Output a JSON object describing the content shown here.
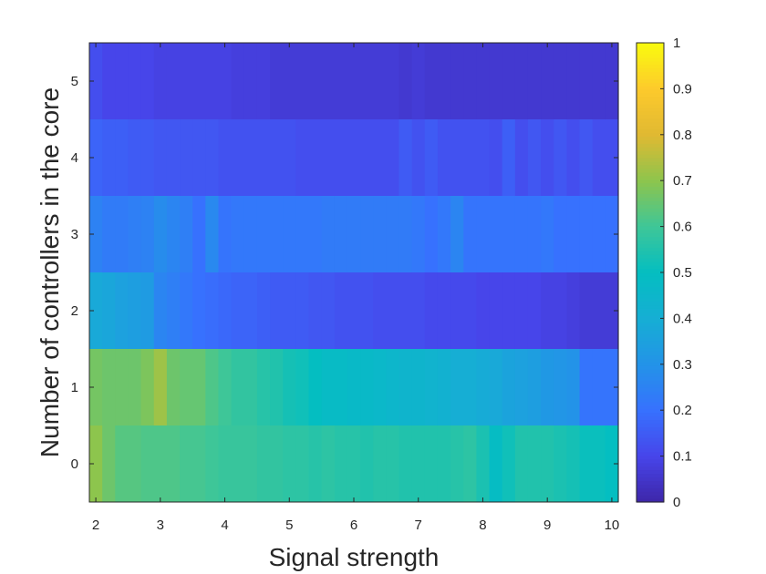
{
  "chart_data": {
    "type": "heatmap",
    "title": "",
    "xlabel": "Signal strength",
    "ylabel": "Number of controllers in the core",
    "x_range": [
      1.9,
      10.1
    ],
    "x_ticks": [
      2,
      3,
      4,
      5,
      6,
      7,
      8,
      9,
      10
    ],
    "y_ticks": [
      0,
      1,
      2,
      3,
      4,
      5
    ],
    "y_range": [
      -0.5,
      5.5
    ],
    "colormap": "parula",
    "colorbar": {
      "range": [
        0,
        1
      ],
      "ticks": [
        0,
        0.1,
        0.2,
        0.3,
        0.4,
        0.5,
        0.6,
        0.7,
        0.8,
        0.9,
        1
      ],
      "tick_labels": [
        "0",
        "0.1",
        "0.2",
        "0.3",
        "0.4",
        "0.5",
        "0.6",
        "0.7",
        "0.8",
        "0.9",
        "1"
      ]
    },
    "columns_x": [
      2.0,
      2.2,
      2.4,
      2.6,
      2.8,
      3.0,
      3.2,
      3.4,
      3.6,
      3.8,
      4.0,
      4.2,
      4.4,
      4.6,
      4.8,
      5.0,
      5.2,
      5.4,
      5.6,
      5.8,
      6.0,
      6.2,
      6.4,
      6.6,
      6.8,
      7.0,
      7.2,
      7.4,
      7.6,
      7.8,
      8.0,
      8.2,
      8.4,
      8.6,
      8.8,
      9.0,
      9.2,
      9.4,
      9.6,
      9.8,
      10.0
    ],
    "rows": [
      {
        "y": 0,
        "values": [
          0.7,
          0.66,
          0.63,
          0.63,
          0.62,
          0.62,
          0.62,
          0.61,
          0.61,
          0.6,
          0.59,
          0.59,
          0.59,
          0.58,
          0.58,
          0.57,
          0.57,
          0.56,
          0.57,
          0.56,
          0.56,
          0.55,
          0.56,
          0.56,
          0.55,
          0.55,
          0.55,
          0.55,
          0.56,
          0.57,
          0.54,
          0.49,
          0.52,
          0.55,
          0.55,
          0.55,
          0.54,
          0.53,
          0.51,
          0.51,
          0.5
        ]
      },
      {
        "y": 1,
        "values": [
          0.67,
          0.66,
          0.66,
          0.66,
          0.68,
          0.72,
          0.66,
          0.65,
          0.65,
          0.62,
          0.6,
          0.58,
          0.58,
          0.56,
          0.55,
          0.53,
          0.52,
          0.5,
          0.48,
          0.48,
          0.47,
          0.47,
          0.46,
          0.45,
          0.44,
          0.44,
          0.43,
          0.42,
          0.4,
          0.4,
          0.39,
          0.38,
          0.36,
          0.35,
          0.34,
          0.32,
          0.31,
          0.3,
          0.21,
          0.21,
          0.21
        ]
      },
      {
        "y": 2,
        "values": [
          0.38,
          0.37,
          0.35,
          0.34,
          0.33,
          0.26,
          0.24,
          0.22,
          0.2,
          0.19,
          0.18,
          0.17,
          0.17,
          0.16,
          0.15,
          0.15,
          0.15,
          0.14,
          0.14,
          0.13,
          0.13,
          0.13,
          0.12,
          0.12,
          0.12,
          0.12,
          0.11,
          0.11,
          0.11,
          0.11,
          0.1,
          0.1,
          0.1,
          0.1,
          0.1,
          0.09,
          0.09,
          0.08,
          0.07,
          0.07,
          0.07
        ]
      },
      {
        "y": 3,
        "values": [
          0.25,
          0.23,
          0.23,
          0.24,
          0.25,
          0.28,
          0.26,
          0.24,
          0.2,
          0.27,
          0.21,
          0.22,
          0.22,
          0.22,
          0.22,
          0.22,
          0.22,
          0.22,
          0.23,
          0.23,
          0.23,
          0.23,
          0.23,
          0.23,
          0.23,
          0.22,
          0.2,
          0.22,
          0.26,
          0.21,
          0.21,
          0.21,
          0.21,
          0.21,
          0.21,
          0.22,
          0.2,
          0.2,
          0.2,
          0.2,
          0.2
        ]
      },
      {
        "y": 4,
        "values": [
          0.17,
          0.16,
          0.16,
          0.15,
          0.15,
          0.14,
          0.14,
          0.14,
          0.14,
          0.14,
          0.13,
          0.13,
          0.13,
          0.13,
          0.13,
          0.13,
          0.12,
          0.12,
          0.12,
          0.12,
          0.12,
          0.12,
          0.12,
          0.12,
          0.15,
          0.13,
          0.15,
          0.13,
          0.13,
          0.13,
          0.13,
          0.12,
          0.16,
          0.12,
          0.14,
          0.12,
          0.14,
          0.12,
          0.14,
          0.12,
          0.12
        ]
      },
      {
        "y": 5,
        "values": [
          0.12,
          0.1,
          0.1,
          0.1,
          0.1,
          0.09,
          0.09,
          0.09,
          0.09,
          0.09,
          0.09,
          0.08,
          0.08,
          0.08,
          0.07,
          0.07,
          0.07,
          0.07,
          0.07,
          0.07,
          0.07,
          0.07,
          0.07,
          0.07,
          0.06,
          0.07,
          0.06,
          0.06,
          0.06,
          0.06,
          0.06,
          0.06,
          0.06,
          0.06,
          0.06,
          0.06,
          0.06,
          0.06,
          0.06,
          0.06,
          0.06
        ]
      }
    ]
  }
}
